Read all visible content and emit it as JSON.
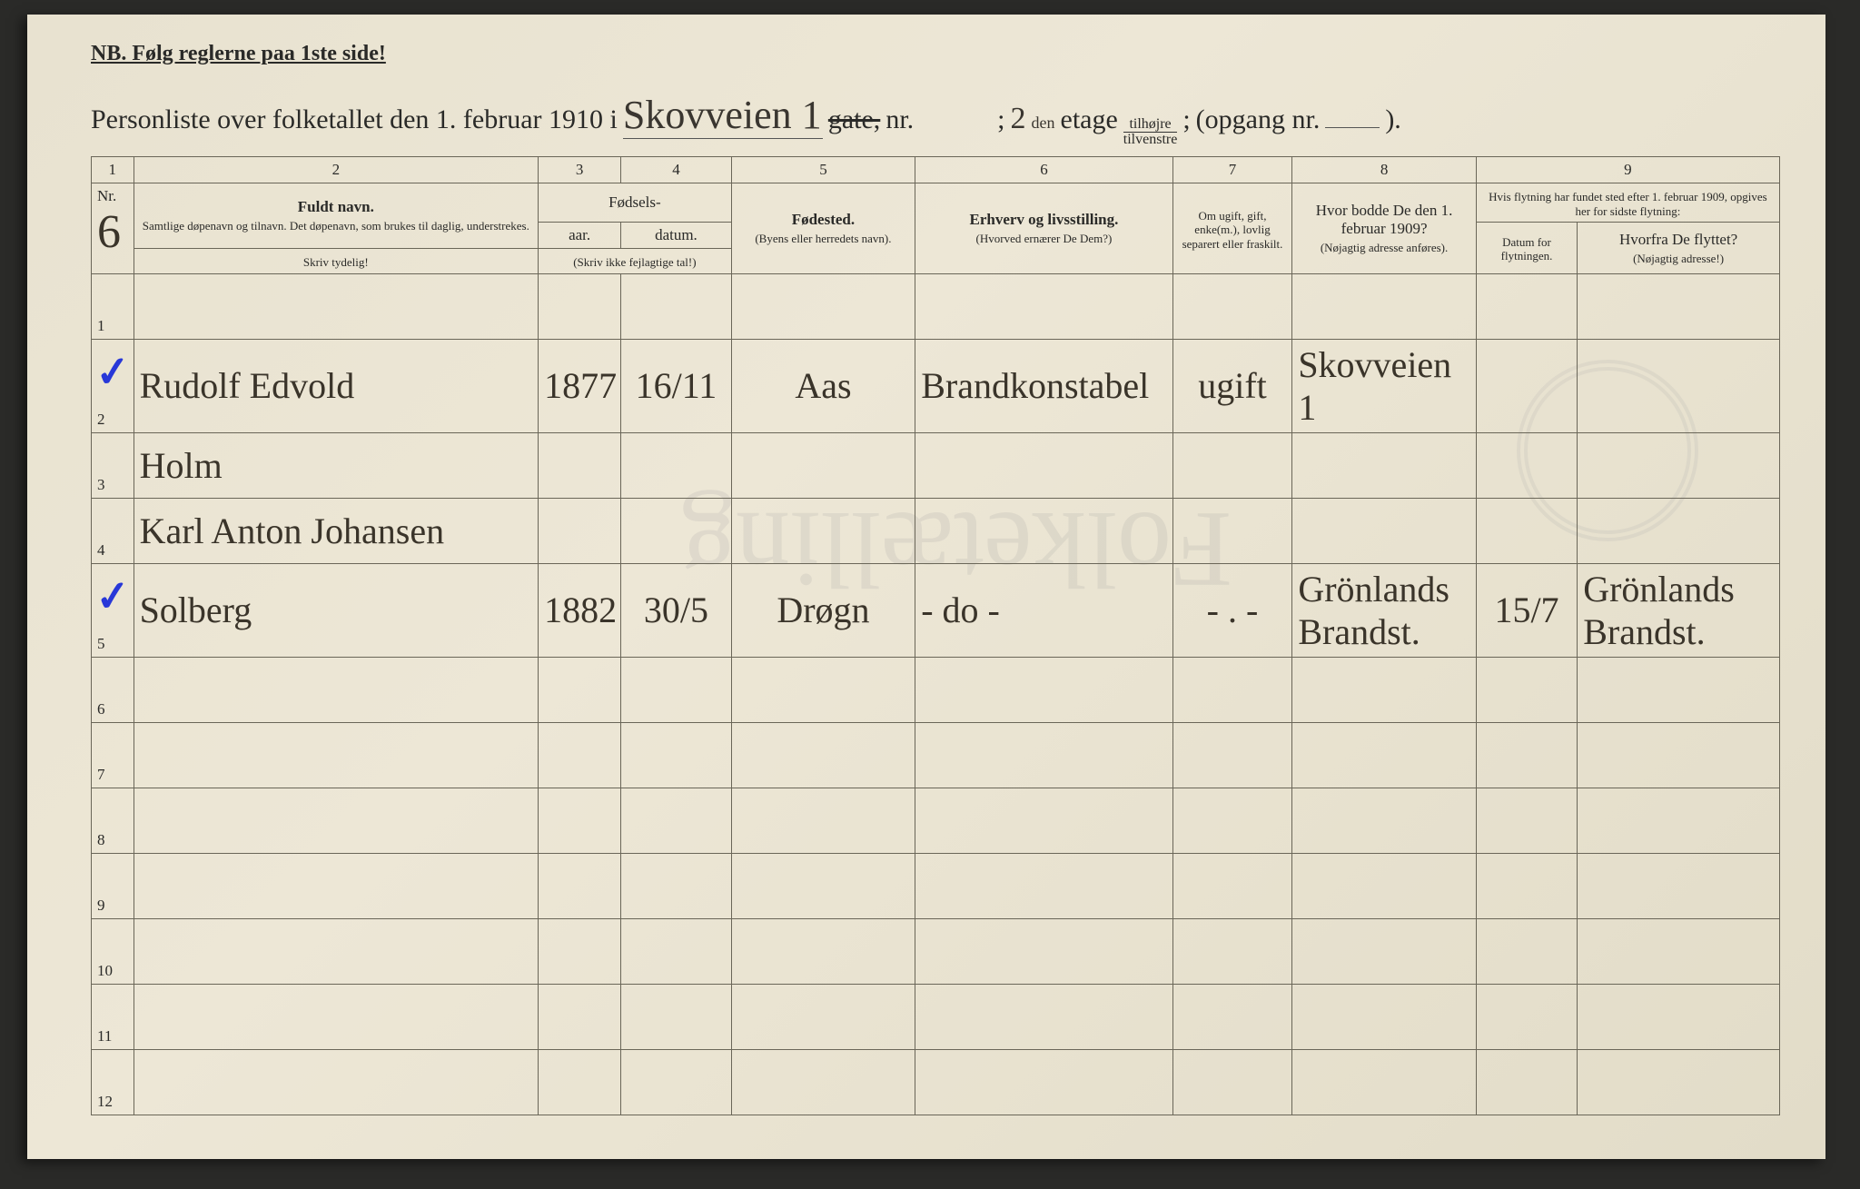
{
  "document": {
    "nb_line": "NB.  Følg reglerne paa 1ste side!",
    "title_prefix": "Personliste over folketallet den 1. februar 1910 i",
    "street_hw": "Skovveien 1",
    "gate_label": "gate,",
    "nr_label": "nr.",
    "floor_hw": "2",
    "floor_super": "den",
    "etage_label": "etage",
    "tilhojre": "tilhøjre",
    "tilvenstre": "tilvenstre",
    "opgang_label": "(opgang nr.",
    "opgang_close": ").",
    "nr_header": "Nr.",
    "nr_hw": "6",
    "colnums": [
      "1",
      "2",
      "3",
      "4",
      "5",
      "6",
      "7",
      "8",
      "9"
    ],
    "headers": {
      "fuldt_navn": "Fuldt navn.",
      "fuldt_sub": "Samtlige døpenavn og tilnavn.  Det døpenavn, som brukes til daglig, understrekes.",
      "fodsels": "Fødsels-",
      "aar": "aar.",
      "datum": "datum.",
      "skriv_ikke": "(Skriv ikke fejlagtige tal!)",
      "fodested": "Fødested.",
      "fodested_sub": "(Byens eller herredets navn).",
      "erhverv": "Erhverv og livsstilling.",
      "erhverv_sub": "(Hvorved ernærer De Dem?)",
      "ugift": "Om ugift, gift, enke(m.), lovlig separert eller fraskilt.",
      "bodde": "Hvor bodde De den 1. februar 1909?",
      "bodde_sub": "(Nøjagtig adresse anføres).",
      "flytning": "Hvis flytning har fundet sted efter 1. februar 1909, opgives her for sidste flytning:",
      "datum_flyt": "Datum for flytningen.",
      "hvorfra": "Hvorfra De flyttet?",
      "hvorfra_sub": "(Nøjagtig adresse!)",
      "skriv_tydelig": "Skriv tydelig!"
    },
    "rows": [
      {
        "num": "1",
        "check": false
      },
      {
        "num": "2",
        "check": true,
        "name": "Rudolf Edvold",
        "year": "1877",
        "date": "16/11",
        "place": "Aas",
        "occ": "Brandkonstabel",
        "status": "ugift",
        "addr1909": "Skovveien 1"
      },
      {
        "num": "3",
        "check": false,
        "name": "Holm"
      },
      {
        "num": "4",
        "check": false,
        "name": "Karl Anton Johansen"
      },
      {
        "num": "5",
        "check": true,
        "name": "Solberg",
        "year": "1882",
        "date": "30/5",
        "place": "Drøgn",
        "occ": "- do -",
        "status": "- . -",
        "addr1909": "Grönlands Brandst.",
        "flyt_date": "15/7",
        "hvorfra": "Grönlands Brandst."
      },
      {
        "num": "6"
      },
      {
        "num": "7"
      },
      {
        "num": "8"
      },
      {
        "num": "9"
      },
      {
        "num": "10"
      },
      {
        "num": "11"
      },
      {
        "num": "12"
      }
    ]
  },
  "colors": {
    "paper": "#e8e2d0",
    "ink": "#2a2a28",
    "hw": "#3a342a",
    "blue_check": "#2838d8",
    "border": "#6a6658"
  }
}
